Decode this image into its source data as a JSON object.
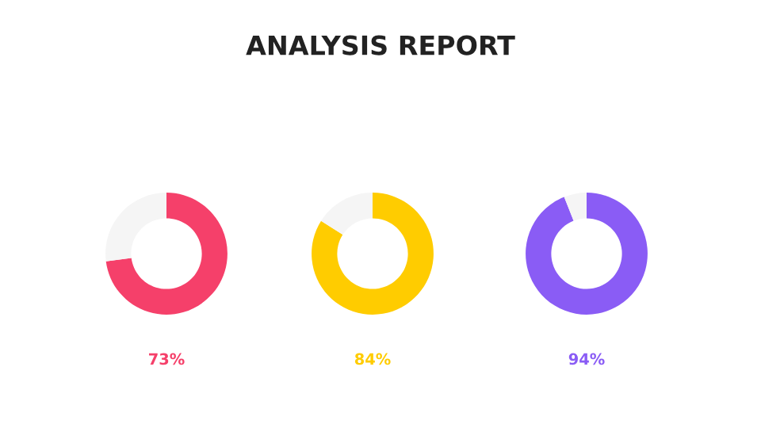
{
  "chart_data": [
    {
      "type": "other",
      "title": "ANALYSIS REPORT"
    },
    {
      "type": "donut",
      "categories": [
        null,
        null
      ],
      "values": [
        73,
        27
      ],
      "colors": [
        "#f5406a",
        "#f5f5f5"
      ],
      "value_labels": [
        "73%",
        null
      ]
    },
    {
      "type": "donut",
      "categories": [
        null,
        null
      ],
      "values": [
        84,
        16
      ],
      "colors": [
        "#ffcc00",
        "#f5f5f5"
      ],
      "value_labels": [
        "84%",
        null
      ]
    },
    {
      "type": "donut",
      "categories": [
        null,
        null
      ],
      "values": [
        94,
        6
      ],
      "colors": [
        "#8a5cf5",
        "#f5f5f5"
      ],
      "value_labels": [
        "94%",
        null
      ]
    }
  ]
}
